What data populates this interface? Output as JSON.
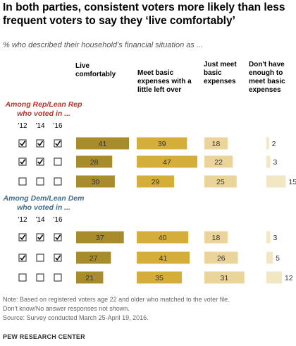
{
  "title": "In both parties, consistent voters more likely than less frequent voters to say they ‘live comfortably’",
  "subtitle": "% who described their household’s financial situation as ...",
  "colors": {
    "live_comfortably": "#a88c2c",
    "meet_basic_little_left": "#d4ad3a",
    "just_meet_basic": "#ead49a",
    "not_enough": "#f2e7c4",
    "rep": "#b8342a",
    "dem": "#3f6f8a"
  },
  "chart_data": {
    "type": "bar",
    "categories": [
      "Live comfortably",
      "Meet basic expenses with a little left over",
      "Just meet basic expenses",
      "Don't have enough to meet basic expenses"
    ],
    "header_lines": [
      [
        "Live",
        "comfortably"
      ],
      [
        "Meet basic",
        "expenses with a",
        "little left over"
      ],
      [
        "Just meet",
        "basic",
        "expenses"
      ],
      [
        "Don't have",
        "enough to",
        "meet basic",
        "expenses"
      ]
    ],
    "year_labels": [
      "'12",
      "'14",
      "'16"
    ],
    "groups": [
      {
        "label_lines": [
          "Among Rep/Lean Rep",
          "who voted in ..."
        ],
        "color_key": "rep",
        "rows": [
          {
            "voted": [
              true,
              true,
              true
            ],
            "values": [
              41,
              39,
              18,
              2
            ]
          },
          {
            "voted": [
              true,
              true,
              false
            ],
            "values": [
              28,
              47,
              22,
              3
            ]
          },
          {
            "voted": [
              false,
              false,
              false
            ],
            "values": [
              30,
              29,
              25,
              15
            ]
          }
        ]
      },
      {
        "label_lines": [
          "Among Dem/Lean Dem",
          "who voted in ..."
        ],
        "color_key": "dem",
        "rows": [
          {
            "voted": [
              true,
              true,
              true
            ],
            "values": [
              37,
              40,
              18,
              3
            ]
          },
          {
            "voted": [
              true,
              false,
              true
            ],
            "values": [
              27,
              41,
              26,
              5
            ]
          },
          {
            "voted": [
              false,
              false,
              false
            ],
            "values": [
              21,
              35,
              31,
              12
            ]
          }
        ]
      }
    ]
  },
  "notes": [
    "Note: Based on registered voters age 22 and older who matched to the voter file.",
    "Don't know/No answer responses not shown.",
    "Source: Survey conducted March 25-April 19, 2016."
  ],
  "source_label": "PEW RESEARCH CENTER"
}
